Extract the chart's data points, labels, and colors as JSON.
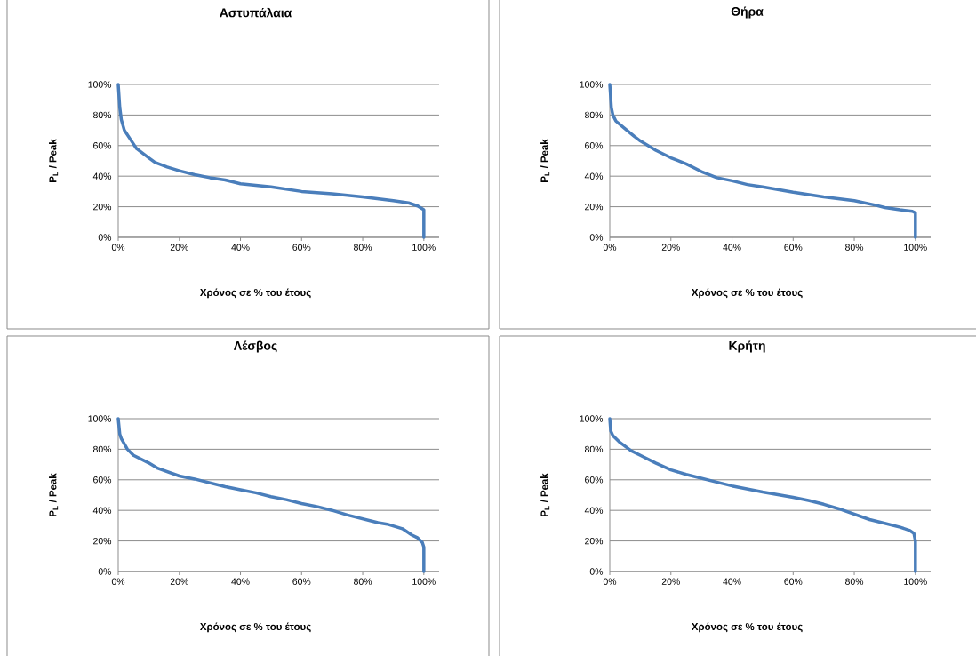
{
  "chart_data": [
    {
      "type": "line",
      "title": "Αστυπάλαια",
      "xlabel": "Χρόνος σε % του έτους",
      "ylabel": "P$_{L}$ / Peak",
      "color": "#4a7ebb",
      "grid": "y",
      "x": [
        0,
        0.5,
        1,
        2,
        4,
        6,
        10,
        12,
        16,
        20,
        25,
        30,
        35,
        40,
        50,
        60,
        70,
        80,
        90,
        95,
        98,
        100,
        100
      ],
      "values": [
        100,
        85,
        77,
        70,
        64,
        58,
        52,
        49,
        46,
        43.5,
        41,
        39,
        37.5,
        35,
        33,
        30,
        28.5,
        26.5,
        24,
        22.5,
        20.5,
        18,
        0
      ],
      "xlim": [
        0,
        105
      ],
      "ylim": [
        0,
        100
      ],
      "xticks": [
        {
          "value": 0,
          "label": "0%"
        },
        {
          "value": 20,
          "label": "20%"
        },
        {
          "value": 40,
          "label": "40%"
        },
        {
          "value": 60,
          "label": "60%"
        },
        {
          "value": 80,
          "label": "80%"
        },
        {
          "value": 100,
          "label": "100%"
        }
      ],
      "yticks": [
        {
          "value": 0,
          "label": "0%"
        },
        {
          "value": 20,
          "label": "20%"
        },
        {
          "value": 40,
          "label": "40%"
        },
        {
          "value": 60,
          "label": "60%"
        },
        {
          "value": 80,
          "label": "80%"
        },
        {
          "value": 100,
          "label": "100%"
        }
      ]
    },
    {
      "type": "line",
      "title": "Θήρα",
      "xlabel": "Χρόνος σε % του έτους",
      "ylabel": "P$_{L}$ / Peak",
      "color": "#4a7ebb",
      "grid": "y",
      "x": [
        0,
        0.5,
        1,
        2,
        5,
        8,
        10,
        15,
        20,
        25,
        30,
        35,
        40,
        45,
        50,
        60,
        70,
        80,
        87,
        90,
        95,
        99,
        100,
        100
      ],
      "values": [
        100,
        85,
        80,
        76,
        71,
        66,
        63,
        57,
        52,
        48,
        43,
        39,
        37,
        34.5,
        33,
        29.5,
        26.5,
        24,
        21,
        19.5,
        18,
        17,
        16,
        0
      ],
      "xlim": [
        0,
        105
      ],
      "ylim": [
        0,
        100
      ],
      "xticks": [
        {
          "value": 0,
          "label": "0%"
        },
        {
          "value": 20,
          "label": "20%"
        },
        {
          "value": 40,
          "label": "40%"
        },
        {
          "value": 60,
          "label": "60%"
        },
        {
          "value": 80,
          "label": "80%"
        },
        {
          "value": 100,
          "label": "100%"
        }
      ],
      "yticks": [
        {
          "value": 0,
          "label": "0%"
        },
        {
          "value": 20,
          "label": "20%"
        },
        {
          "value": 40,
          "label": "40%"
        },
        {
          "value": 60,
          "label": "60%"
        },
        {
          "value": 80,
          "label": "80%"
        },
        {
          "value": 100,
          "label": "100%"
        }
      ]
    },
    {
      "type": "line",
      "title": "Λέσβος",
      "xlabel": "Χρόνος σε % του έτους",
      "ylabel": "P$_{L}$ / Peak",
      "color": "#4a7ebb",
      "grid": "y",
      "x": [
        0,
        0.5,
        1,
        3,
        5,
        10,
        13,
        20,
        25,
        30,
        35,
        40,
        45,
        50,
        55,
        60,
        65,
        70,
        75,
        80,
        85,
        88,
        93,
        96,
        98,
        99.5,
        100,
        100
      ],
      "values": [
        100,
        90,
        87,
        80,
        76,
        71,
        67.5,
        62.5,
        60.5,
        58,
        55.5,
        53.5,
        51.5,
        49,
        47,
        44.5,
        42.5,
        40,
        37,
        34.5,
        32,
        31,
        28,
        24,
        22,
        19,
        16,
        0
      ],
      "xlim": [
        0,
        105
      ],
      "ylim": [
        0,
        100
      ],
      "xticks": [
        {
          "value": 0,
          "label": "0%"
        },
        {
          "value": 20,
          "label": "20%"
        },
        {
          "value": 40,
          "label": "40%"
        },
        {
          "value": 60,
          "label": "60%"
        },
        {
          "value": 80,
          "label": "80%"
        },
        {
          "value": 100,
          "label": "100%"
        }
      ],
      "yticks": [
        {
          "value": 0,
          "label": "0%"
        },
        {
          "value": 20,
          "label": "20%"
        },
        {
          "value": 40,
          "label": "40%"
        },
        {
          "value": 60,
          "label": "60%"
        },
        {
          "value": 80,
          "label": "80%"
        },
        {
          "value": 100,
          "label": "100%"
        }
      ]
    },
    {
      "type": "line",
      "title": "Κρήτη",
      "xlabel": "Χρόνος σε % του έτους",
      "ylabel": "P$_{L}$ / Peak",
      "color": "#4a7ebb",
      "grid": "y",
      "x": [
        0,
        0.3,
        1,
        3,
        7,
        10,
        15,
        20,
        25,
        30,
        35,
        40,
        50,
        60,
        65,
        70,
        75,
        80,
        85,
        90,
        95,
        98,
        99.5,
        100,
        100
      ],
      "values": [
        100,
        92,
        89,
        85,
        79,
        76,
        71,
        66.5,
        63.5,
        61,
        58.5,
        56,
        52,
        48.5,
        46.5,
        44,
        41,
        37.5,
        34,
        31.5,
        29,
        27,
        25,
        20,
        0
      ],
      "xlim": [
        0,
        105
      ],
      "ylim": [
        0,
        100
      ],
      "xticks": [
        {
          "value": 0,
          "label": "0%"
        },
        {
          "value": 20,
          "label": "20%"
        },
        {
          "value": 40,
          "label": "40%"
        },
        {
          "value": 60,
          "label": "60%"
        },
        {
          "value": 80,
          "label": "80%"
        },
        {
          "value": 100,
          "label": "100%"
        }
      ],
      "yticks": [
        {
          "value": 0,
          "label": "0%"
        },
        {
          "value": 20,
          "label": "20%"
        },
        {
          "value": 40,
          "label": "40%"
        },
        {
          "value": 60,
          "label": "60%"
        },
        {
          "value": 80,
          "label": "80%"
        },
        {
          "value": 100,
          "label": "100%"
        }
      ]
    }
  ]
}
